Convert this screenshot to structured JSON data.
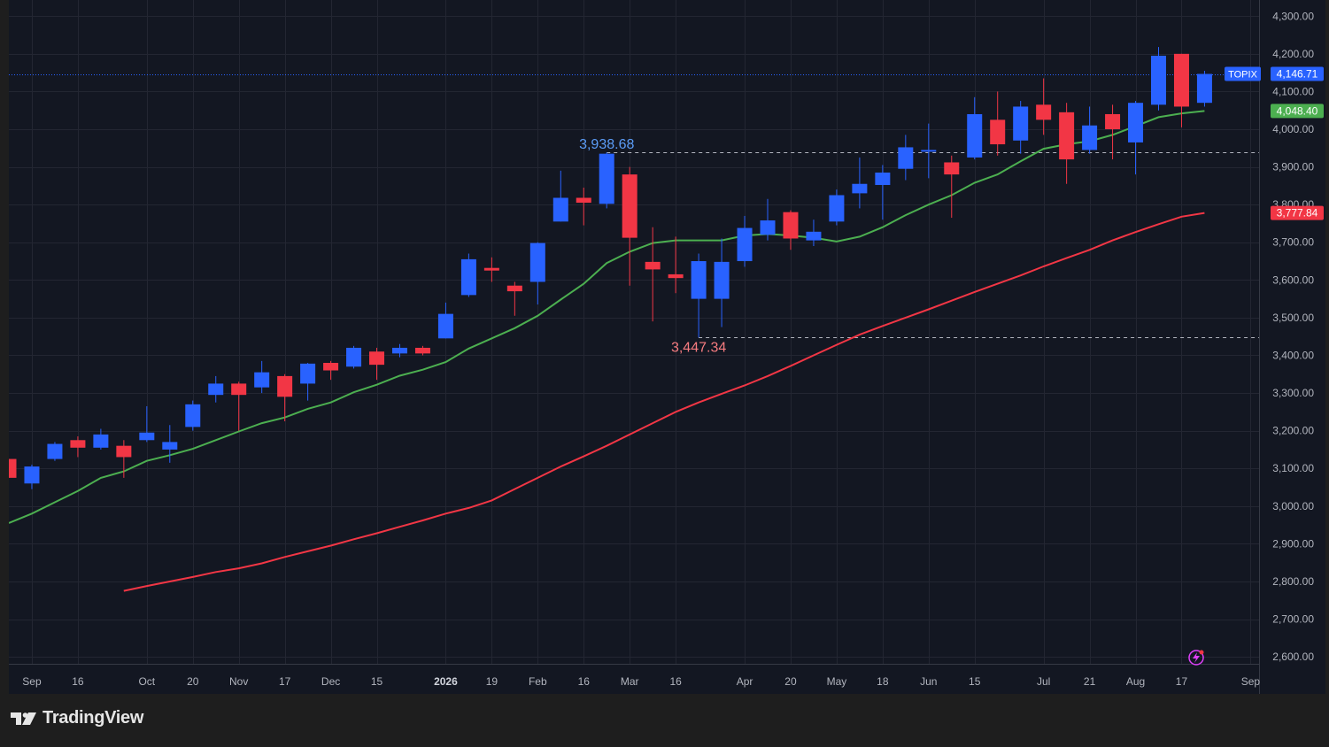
{
  "brand": {
    "name": "TradingView",
    "logo_icon": "tradingview-logo-icon"
  },
  "chart_data": {
    "type": "candlestick",
    "symbol": "TOPIX",
    "last_price_label": "4,146.71",
    "ylim": [
      2560,
      4340
    ],
    "y_ticks": [
      2600,
      2700,
      2800,
      2900,
      3000,
      3100,
      3200,
      3300,
      3400,
      3500,
      3600,
      3700,
      3800,
      3900,
      4000,
      4100,
      4200,
      4300
    ],
    "y_tick_labels": [
      "2,600.00",
      "2,700.00",
      "2,800.00",
      "2,900.00",
      "3,000.00",
      "3,100.00",
      "3,200.00",
      "3,300.00",
      "3,400.00",
      "3,500.00",
      "3,600.00",
      "3,700.00",
      "3,800.00",
      "3,900.00",
      "4,000.00",
      "4,100.00",
      "4,200.00",
      "4,300.00"
    ],
    "x_ticks": [
      {
        "label": "Sep",
        "idx": 1,
        "bold": false
      },
      {
        "label": "16",
        "idx": 3,
        "bold": false
      },
      {
        "label": "Oct",
        "idx": 6,
        "bold": false
      },
      {
        "label": "20",
        "idx": 8,
        "bold": false
      },
      {
        "label": "Nov",
        "idx": 10,
        "bold": false
      },
      {
        "label": "17",
        "idx": 12,
        "bold": false
      },
      {
        "label": "Dec",
        "idx": 14,
        "bold": false
      },
      {
        "label": "15",
        "idx": 16,
        "bold": false
      },
      {
        "label": "2026",
        "idx": 19,
        "bold": true
      },
      {
        "label": "19",
        "idx": 21,
        "bold": false
      },
      {
        "label": "Feb",
        "idx": 23,
        "bold": false
      },
      {
        "label": "16",
        "idx": 25,
        "bold": false
      },
      {
        "label": "Mar",
        "idx": 27,
        "bold": false
      },
      {
        "label": "16",
        "idx": 29,
        "bold": false
      },
      {
        "label": "Apr",
        "idx": 32,
        "bold": false
      },
      {
        "label": "20",
        "idx": 34,
        "bold": false
      },
      {
        "label": "May",
        "idx": 36,
        "bold": false
      },
      {
        "label": "18",
        "idx": 38,
        "bold": false
      },
      {
        "label": "Jun",
        "idx": 40,
        "bold": false
      },
      {
        "label": "15",
        "idx": 42,
        "bold": false
      },
      {
        "label": "Jul",
        "idx": 45,
        "bold": false
      },
      {
        "label": "21",
        "idx": 47,
        "bold": false
      },
      {
        "label": "Aug",
        "idx": 49,
        "bold": false
      },
      {
        "label": "17",
        "idx": 51,
        "bold": false
      },
      {
        "label": "Sep",
        "idx": 54,
        "bold": false
      }
    ],
    "candles": [
      {
        "o": 3125,
        "h": 3125,
        "c": 3075,
        "l": 3075
      },
      {
        "o": 3060,
        "h": 3110,
        "c": 3105,
        "l": 3045
      },
      {
        "o": 3125,
        "h": 3170,
        "c": 3165,
        "l": 3120
      },
      {
        "o": 3175,
        "h": 3185,
        "c": 3155,
        "l": 3130
      },
      {
        "o": 3155,
        "h": 3205,
        "c": 3190,
        "l": 3150
      },
      {
        "o": 3160,
        "h": 3175,
        "c": 3130,
        "l": 3075
      },
      {
        "o": 3175,
        "h": 3265,
        "c": 3195,
        "l": 3170
      },
      {
        "o": 3150,
        "h": 3215,
        "c": 3170,
        "l": 3115
      },
      {
        "o": 3210,
        "h": 3280,
        "c": 3270,
        "l": 3200
      },
      {
        "o": 3295,
        "h": 3345,
        "c": 3325,
        "l": 3275
      },
      {
        "o": 3325,
        "h": 3330,
        "c": 3295,
        "l": 3200
      },
      {
        "o": 3315,
        "h": 3385,
        "c": 3355,
        "l": 3300
      },
      {
        "o": 3345,
        "h": 3350,
        "c": 3290,
        "l": 3225
      },
      {
        "o": 3325,
        "h": 3380,
        "c": 3378,
        "l": 3280
      },
      {
        "o": 3380,
        "h": 3385,
        "c": 3360,
        "l": 3335
      },
      {
        "o": 3370,
        "h": 3425,
        "c": 3420,
        "l": 3365
      },
      {
        "o": 3410,
        "h": 3420,
        "c": 3375,
        "l": 3335
      },
      {
        "o": 3405,
        "h": 3430,
        "c": 3420,
        "l": 3395
      },
      {
        "o": 3420,
        "h": 3425,
        "c": 3405,
        "l": 3400
      },
      {
        "o": 3445,
        "h": 3540,
        "c": 3510,
        "l": 3445
      },
      {
        "o": 3560,
        "h": 3670,
        "c": 3655,
        "l": 3555
      },
      {
        "o": 3632,
        "h": 3660,
        "c": 3625,
        "l": 3595
      },
      {
        "o": 3585,
        "h": 3595,
        "c": 3570,
        "l": 3505
      },
      {
        "o": 3595,
        "h": 3700,
        "c": 3698,
        "l": 3535
      },
      {
        "o": 3755,
        "h": 3890,
        "c": 3818,
        "l": 3755
      },
      {
        "o": 3818,
        "h": 3845,
        "c": 3805,
        "l": 3745
      },
      {
        "o": 3802,
        "h": 3938.68,
        "c": 3935,
        "l": 3790
      },
      {
        "o": 3880,
        "h": 3900,
        "c": 3712,
        "l": 3585
      },
      {
        "o": 3648,
        "h": 3740,
        "c": 3628,
        "l": 3490
      },
      {
        "o": 3615,
        "h": 3715,
        "c": 3605,
        "l": 3565
      },
      {
        "o": 3550,
        "h": 3670,
        "c": 3650,
        "l": 3447.34
      },
      {
        "o": 3550,
        "h": 3710,
        "c": 3648,
        "l": 3475
      },
      {
        "o": 3650,
        "h": 3770,
        "c": 3738,
        "l": 3635
      },
      {
        "o": 3720,
        "h": 3815,
        "c": 3758,
        "l": 3705
      },
      {
        "o": 3780,
        "h": 3785,
        "c": 3710,
        "l": 3680
      },
      {
        "o": 3705,
        "h": 3760,
        "c": 3728,
        "l": 3690
      },
      {
        "o": 3755,
        "h": 3840,
        "c": 3825,
        "l": 3745
      },
      {
        "o": 3830,
        "h": 3925,
        "c": 3855,
        "l": 3790
      },
      {
        "o": 3852,
        "h": 3905,
        "c": 3885,
        "l": 3760
      },
      {
        "o": 3895,
        "h": 3985,
        "c": 3952,
        "l": 3865
      },
      {
        "o": 3942,
        "h": 4015,
        "c": 3945,
        "l": 3870
      },
      {
        "o": 3912,
        "h": 3930,
        "c": 3880,
        "l": 3765
      },
      {
        "o": 3925,
        "h": 4085,
        "c": 4040,
        "l": 3920
      },
      {
        "o": 4025,
        "h": 4100,
        "c": 3960,
        "l": 3930
      },
      {
        "o": 3970,
        "h": 4075,
        "c": 4060,
        "l": 3935
      },
      {
        "o": 4065,
        "h": 4135,
        "c": 4025,
        "l": 3985
      },
      {
        "o": 4045,
        "h": 4070,
        "c": 3920,
        "l": 3855
      },
      {
        "o": 3945,
        "h": 4060,
        "c": 4010,
        "l": 3935
      },
      {
        "o": 4040,
        "h": 4065,
        "c": 4000,
        "l": 3920
      },
      {
        "o": 3965,
        "h": 4075,
        "c": 4070,
        "l": 3880
      },
      {
        "o": 4065,
        "h": 4218,
        "c": 4195,
        "l": 4050
      },
      {
        "o": 4200,
        "h": 4200,
        "c": 4060,
        "l": 4005
      },
      {
        "o": 4070,
        "h": 4155,
        "c": 4146.71,
        "l": 4060
      }
    ],
    "ma_short": {
      "label_value": "4,048.40",
      "color": "#4caf50",
      "values": [
        2955,
        2980,
        3010,
        3040,
        3075,
        3092,
        3120,
        3135,
        3152,
        3175,
        3198,
        3220,
        3235,
        3258,
        3275,
        3302,
        3322,
        3346,
        3362,
        3382,
        3418,
        3445,
        3472,
        3505,
        3548,
        3590,
        3645,
        3675,
        3698,
        3705,
        3705,
        3705,
        3718,
        3722,
        3718,
        3712,
        3702,
        3715,
        3740,
        3772,
        3800,
        3825,
        3858,
        3880,
        3915,
        3948,
        3960,
        3968,
        3985,
        4008,
        4032,
        4042,
        4048.4
      ]
    },
    "ma_long": {
      "label_value": "3,777.84",
      "color": "#f23645",
      "values": [
        2775,
        2788,
        2800,
        2812,
        2825,
        2835,
        2848,
        2865,
        2880,
        2895,
        2912,
        2928,
        2945,
        2962,
        2980,
        2995,
        3015,
        3045,
        3075,
        3105,
        3132,
        3160,
        3190,
        3220,
        3250,
        3275,
        3298,
        3320,
        3345,
        3372,
        3400,
        3428,
        3455,
        3478,
        3500,
        3522,
        3545,
        3568,
        3590,
        3612,
        3636,
        3658,
        3680,
        3705,
        3727,
        3748,
        3768,
        3777.84
      ]
    },
    "annotations": {
      "high_label": "3,938.68",
      "high_value": 3938.68,
      "high_idx": 26,
      "low_label": "3,447.34",
      "low_value": 3447.34,
      "low_idx": 30
    },
    "colors": {
      "up": "#2962ff",
      "down": "#f23645",
      "background": "#131722",
      "grid": "#232632",
      "price_line": "#2962ff",
      "high_text": "#5b9cf6",
      "low_text": "#f77c80",
      "ma_short_badge": "#4caf50",
      "ma_long_badge": "#f23645"
    },
    "grid": true
  }
}
